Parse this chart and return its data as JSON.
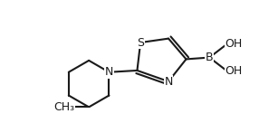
{
  "background_color": "#ffffff",
  "line_color": "#1a1a1a",
  "line_width": 1.5,
  "font_size": 9,
  "figsize": [
    2.86,
    1.36
  ],
  "dpi": 100,
  "atom_labels": {
    "S": "S",
    "N": "N",
    "B": "B",
    "OH": "OH",
    "CH3": "CH₃"
  }
}
